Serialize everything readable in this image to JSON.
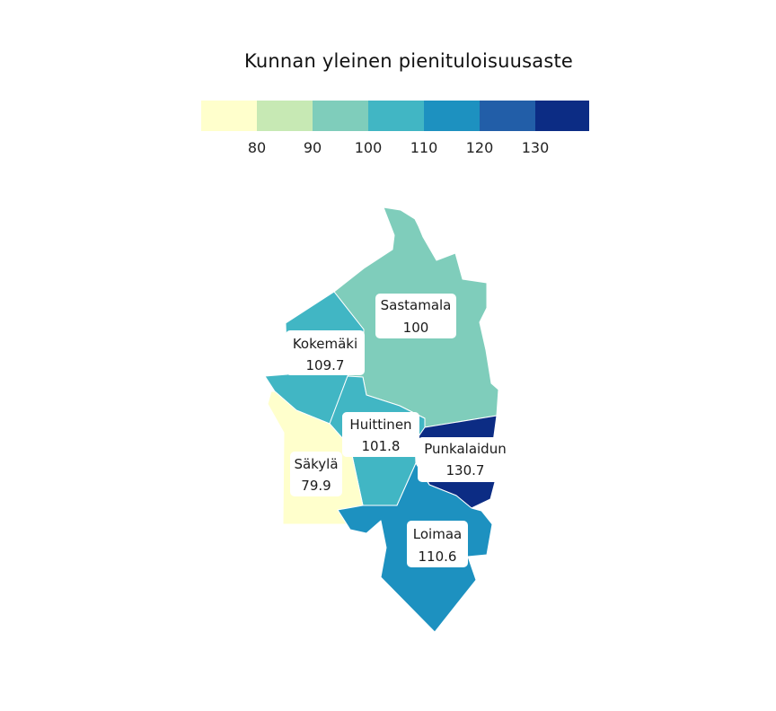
{
  "title": "Kunnan yleinen pienituloisuusaste",
  "legend": {
    "colors": [
      "#ffffcc",
      "#c7e9b4",
      "#7fcdbb",
      "#41b6c4",
      "#1d91c0",
      "#225ea8",
      "#0c2c84"
    ],
    "ticks": [
      "80",
      "90",
      "100",
      "110",
      "120",
      "130"
    ]
  },
  "regions": [
    {
      "name": "Sastamala",
      "value": "100",
      "color": "#7fcdbb"
    },
    {
      "name": "Kokemäki",
      "value": "109.7",
      "color": "#41b6c4"
    },
    {
      "name": "Huittinen",
      "value": "101.8",
      "color": "#41b6c4"
    },
    {
      "name": "Punkalaidun",
      "value": "130.7",
      "color": "#0c2c84"
    },
    {
      "name": "Säkylä",
      "value": "79.9",
      "color": "#ffffcc"
    },
    {
      "name": "Loimaa",
      "value": "110.6",
      "color": "#1d91c0"
    }
  ]
}
